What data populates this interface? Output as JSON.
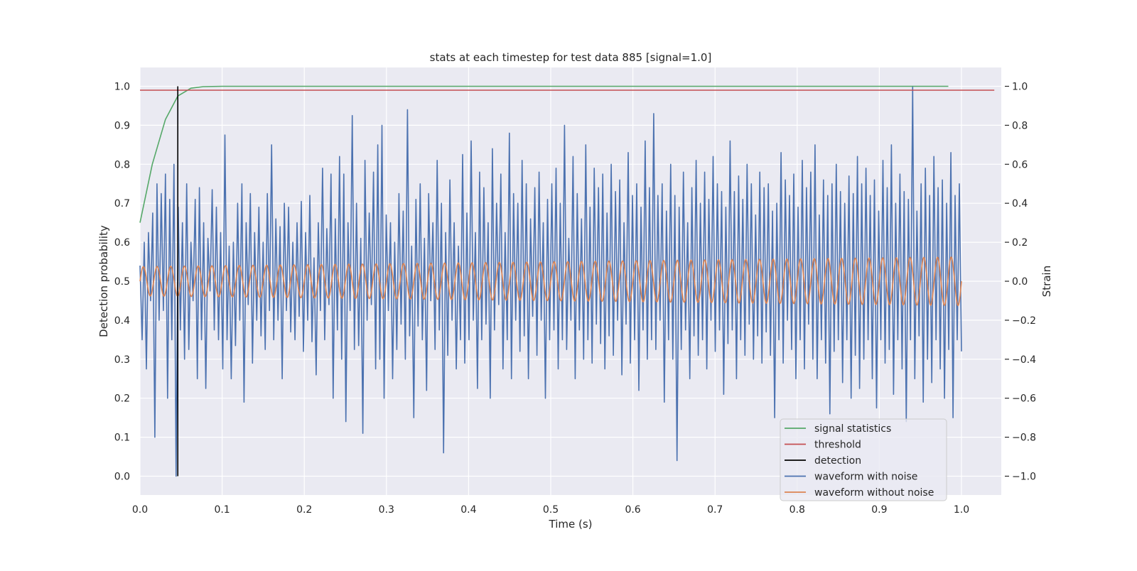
{
  "chart_data": {
    "type": "line",
    "title": "stats at each timestep for test data 885 [signal=1.0]",
    "xlabel": "Time (s)",
    "ylabel": "Detection probability",
    "ylabel_right": "Strain",
    "xlim": [
      0.0,
      1.05
    ],
    "ylim": [
      -0.05,
      1.05
    ],
    "ylim_right": [
      -1.1,
      1.1
    ],
    "x_ticks": [
      0.0,
      0.1,
      0.2,
      0.3,
      0.4,
      0.5,
      0.6,
      0.7,
      0.8,
      0.9,
      1.0
    ],
    "x_tick_labels": [
      "0.0",
      "0.1",
      "0.2",
      "0.3",
      "0.4",
      "0.5",
      "0.6",
      "0.7",
      "0.8",
      "0.9",
      "1.0"
    ],
    "y_ticks": [
      0.0,
      0.1,
      0.2,
      0.3,
      0.4,
      0.5,
      0.6,
      0.7,
      0.8,
      0.9,
      1.0
    ],
    "y_tick_labels": [
      "0.0",
      "0.1",
      "0.2",
      "0.3",
      "0.4",
      "0.5",
      "0.6",
      "0.7",
      "0.8",
      "0.9",
      "1.0"
    ],
    "y_right_ticks": [
      -1.0,
      -0.8,
      -0.6,
      -0.4,
      -0.2,
      0.0,
      0.2,
      0.4,
      0.6,
      0.8,
      1.0
    ],
    "y_right_tick_labels": [
      "−1.0",
      "−0.8",
      "−0.6",
      "−0.4",
      "−0.2",
      "0.0",
      "0.2",
      "0.4",
      "0.6",
      "0.8",
      "1.0"
    ],
    "grid": true,
    "legend_position": "lower-right",
    "legend": [
      {
        "label": "signal statistics",
        "color": "#55a868"
      },
      {
        "label": "threshold",
        "color": "#c44e52"
      },
      {
        "label": "detection",
        "color": "#000000"
      },
      {
        "label": "waveform with noise",
        "color": "#4c72b0"
      },
      {
        "label": "waveform without noise",
        "color": "#dd8452"
      }
    ],
    "series": [
      {
        "name": "signal statistics",
        "axis": "left",
        "color": "#55a868",
        "x": [
          0.0,
          0.015,
          0.031,
          0.046,
          0.062,
          0.077,
          0.1,
          0.2,
          0.3,
          0.4,
          0.5,
          0.6,
          0.7,
          0.8,
          0.9,
          0.984
        ],
        "y": [
          0.65,
          0.8,
          0.915,
          0.975,
          0.995,
          0.999,
          1.0,
          1.0,
          1.0,
          1.0,
          1.0,
          1.0,
          1.0,
          1.0,
          1.0,
          1.0
        ]
      },
      {
        "name": "threshold",
        "axis": "left",
        "color": "#c44e52",
        "x": [
          0.0,
          1.04
        ],
        "y": [
          0.99,
          0.99
        ]
      },
      {
        "name": "detection",
        "axis": "left",
        "color": "#000000",
        "x": [
          0.046,
          0.046
        ],
        "y": [
          0.0,
          1.0
        ]
      },
      {
        "name": "waveform with noise",
        "axis": "right",
        "color": "#4c72b0",
        "x_start": 0.0,
        "x_end": 1.0,
        "y": [
          0.08,
          -0.3,
          0.2,
          -0.45,
          0.25,
          -0.1,
          0.35,
          -0.8,
          0.5,
          -0.2,
          0.45,
          -0.15,
          0.55,
          -0.6,
          0.42,
          -0.3,
          0.6,
          -1.0,
          0.38,
          -0.25,
          0.3,
          -0.4,
          0.5,
          -0.35,
          0.2,
          -0.1,
          0.42,
          -0.5,
          0.48,
          -0.3,
          0.3,
          -0.55,
          0.22,
          -0.05,
          0.47,
          -0.25,
          0.38,
          -0.3,
          0.25,
          -0.45,
          0.75,
          -0.3,
          0.18,
          -0.5,
          0.2,
          -0.33,
          0.4,
          -0.2,
          0.5,
          -0.62,
          0.3,
          -0.12,
          0.45,
          -0.42,
          0.25,
          -0.2,
          0.38,
          -0.28,
          0.2,
          -0.35,
          0.45,
          -0.15,
          0.7,
          -0.3,
          0.32,
          -0.2,
          0.28,
          -0.5,
          0.4,
          -0.15,
          0.38,
          -0.26,
          0.2,
          -0.3,
          0.3,
          -0.18,
          0.41,
          -0.36,
          0.25,
          -0.2,
          0.44,
          -0.31,
          0.12,
          -0.48,
          0.3,
          -0.15,
          0.58,
          -0.3,
          0.27,
          -0.12,
          0.55,
          -0.6,
          0.32,
          -0.25,
          0.64,
          -0.4,
          0.55,
          -0.72,
          0.3,
          -0.15,
          0.85,
          -0.35,
          0.4,
          -0.33,
          0.22,
          -0.78,
          0.62,
          -0.2,
          0.35,
          -0.12,
          0.56,
          -0.45,
          0.7,
          -0.4,
          0.8,
          -0.6,
          0.34,
          -0.15,
          0.3,
          -0.5,
          0.2,
          -0.35,
          0.45,
          -0.22,
          0.36,
          -0.4,
          0.88,
          -0.28,
          0.18,
          -0.7,
          0.42,
          -0.23,
          0.5,
          -0.3,
          0.22,
          -0.56,
          0.45,
          -0.1,
          0.3,
          -0.35,
          0.62,
          -0.25,
          0.4,
          -0.88,
          0.25,
          -0.38,
          0.52,
          -0.2,
          0.3,
          -0.45,
          0.18,
          -0.3,
          0.65,
          -0.42,
          0.35,
          -0.3,
          0.72,
          -0.2,
          0.25,
          -0.55,
          0.56,
          -0.3,
          0.48,
          -0.22,
          0.3,
          -0.6,
          0.68,
          -0.25,
          0.4,
          -0.12,
          0.55,
          -0.45,
          0.25,
          -0.3,
          0.76,
          -0.5,
          0.45,
          -0.2,
          0.4,
          -0.36,
          0.62,
          -0.28,
          0.5,
          -0.5,
          0.32,
          -0.18,
          0.48,
          -0.38,
          0.56,
          -0.2,
          0.3,
          -0.6,
          0.42,
          -0.3,
          0.5,
          -0.25,
          0.58,
          -0.45,
          0.4,
          -0.3,
          0.8,
          -0.35,
          0.22,
          -0.2,
          0.64,
          -0.5,
          0.45,
          -0.25,
          0.32,
          -0.4,
          0.7,
          -0.3,
          0.38,
          -0.42,
          0.58,
          -0.22,
          0.48,
          -0.32,
          0.55,
          -0.45,
          0.35,
          -0.28,
          0.6,
          -0.38,
          0.46,
          -0.2,
          0.52,
          -0.48,
          0.3,
          -0.22,
          0.66,
          -0.42,
          0.44,
          -0.3,
          0.5,
          -0.56,
          0.38,
          -0.25,
          0.72,
          -0.4,
          0.48,
          -0.3,
          0.86,
          -0.35,
          0.44,
          -0.2,
          0.5,
          -0.62,
          0.36,
          -0.3,
          0.6,
          -0.4,
          0.44,
          -0.92,
          0.38,
          -0.35,
          0.56,
          -0.25,
          0.3,
          -0.5,
          0.48,
          -0.28,
          0.62,
          -0.38,
          0.4,
          -0.3,
          0.56,
          -0.45,
          0.42,
          -0.2,
          0.64,
          -0.36,
          0.5,
          -0.25,
          0.46,
          -0.58,
          0.38,
          -0.32,
          0.72,
          -0.25,
          0.46,
          -0.5,
          0.54,
          -0.3,
          0.42,
          -0.38,
          0.6,
          -0.22,
          0.5,
          -0.4,
          0.34,
          -0.28,
          0.56,
          -0.42,
          0.48,
          -0.26,
          0.5,
          -0.38,
          0.36,
          -0.7,
          0.4,
          -0.3,
          0.66,
          -0.42,
          0.52,
          -0.2,
          0.44,
          -0.35,
          0.55,
          -0.5,
          0.38,
          -0.3,
          0.62,
          -0.45,
          0.48,
          -0.22,
          0.56,
          -0.4,
          0.7,
          -0.5,
          0.34,
          -0.3,
          0.52,
          -0.42,
          0.44,
          -0.68,
          0.5,
          -0.36,
          0.6,
          -0.3,
          0.46,
          -0.52,
          0.4,
          -0.3,
          0.54,
          -0.6,
          0.45,
          -0.38,
          0.64,
          -0.55,
          0.5,
          -0.4,
          0.58,
          -0.3,
          0.44,
          -0.5,
          0.52,
          -0.65,
          0.36,
          -0.3,
          0.62,
          -0.42,
          0.48,
          -0.35,
          0.7,
          -0.58,
          0.4,
          -0.3,
          0.55,
          -0.45,
          0.46,
          -0.72,
          0.42,
          -0.3,
          1.0,
          -0.5,
          0.36,
          -0.28,
          0.5,
          -0.62,
          0.58,
          -0.4,
          0.44,
          -0.52,
          0.64,
          -0.3,
          0.48,
          -0.45,
          0.52,
          -0.6,
          0.4,
          -0.35,
          0.66,
          -0.7,
          0.44,
          -0.3,
          0.5,
          -0.36
        ]
      },
      {
        "name": "waveform without noise",
        "axis": "right",
        "color": "#dd8452",
        "x_start": 0.0,
        "x_end": 1.0,
        "frequency_hz": 60,
        "amplitude_start": 0.075,
        "amplitude_end": 0.125,
        "mean": 0.0
      }
    ]
  }
}
